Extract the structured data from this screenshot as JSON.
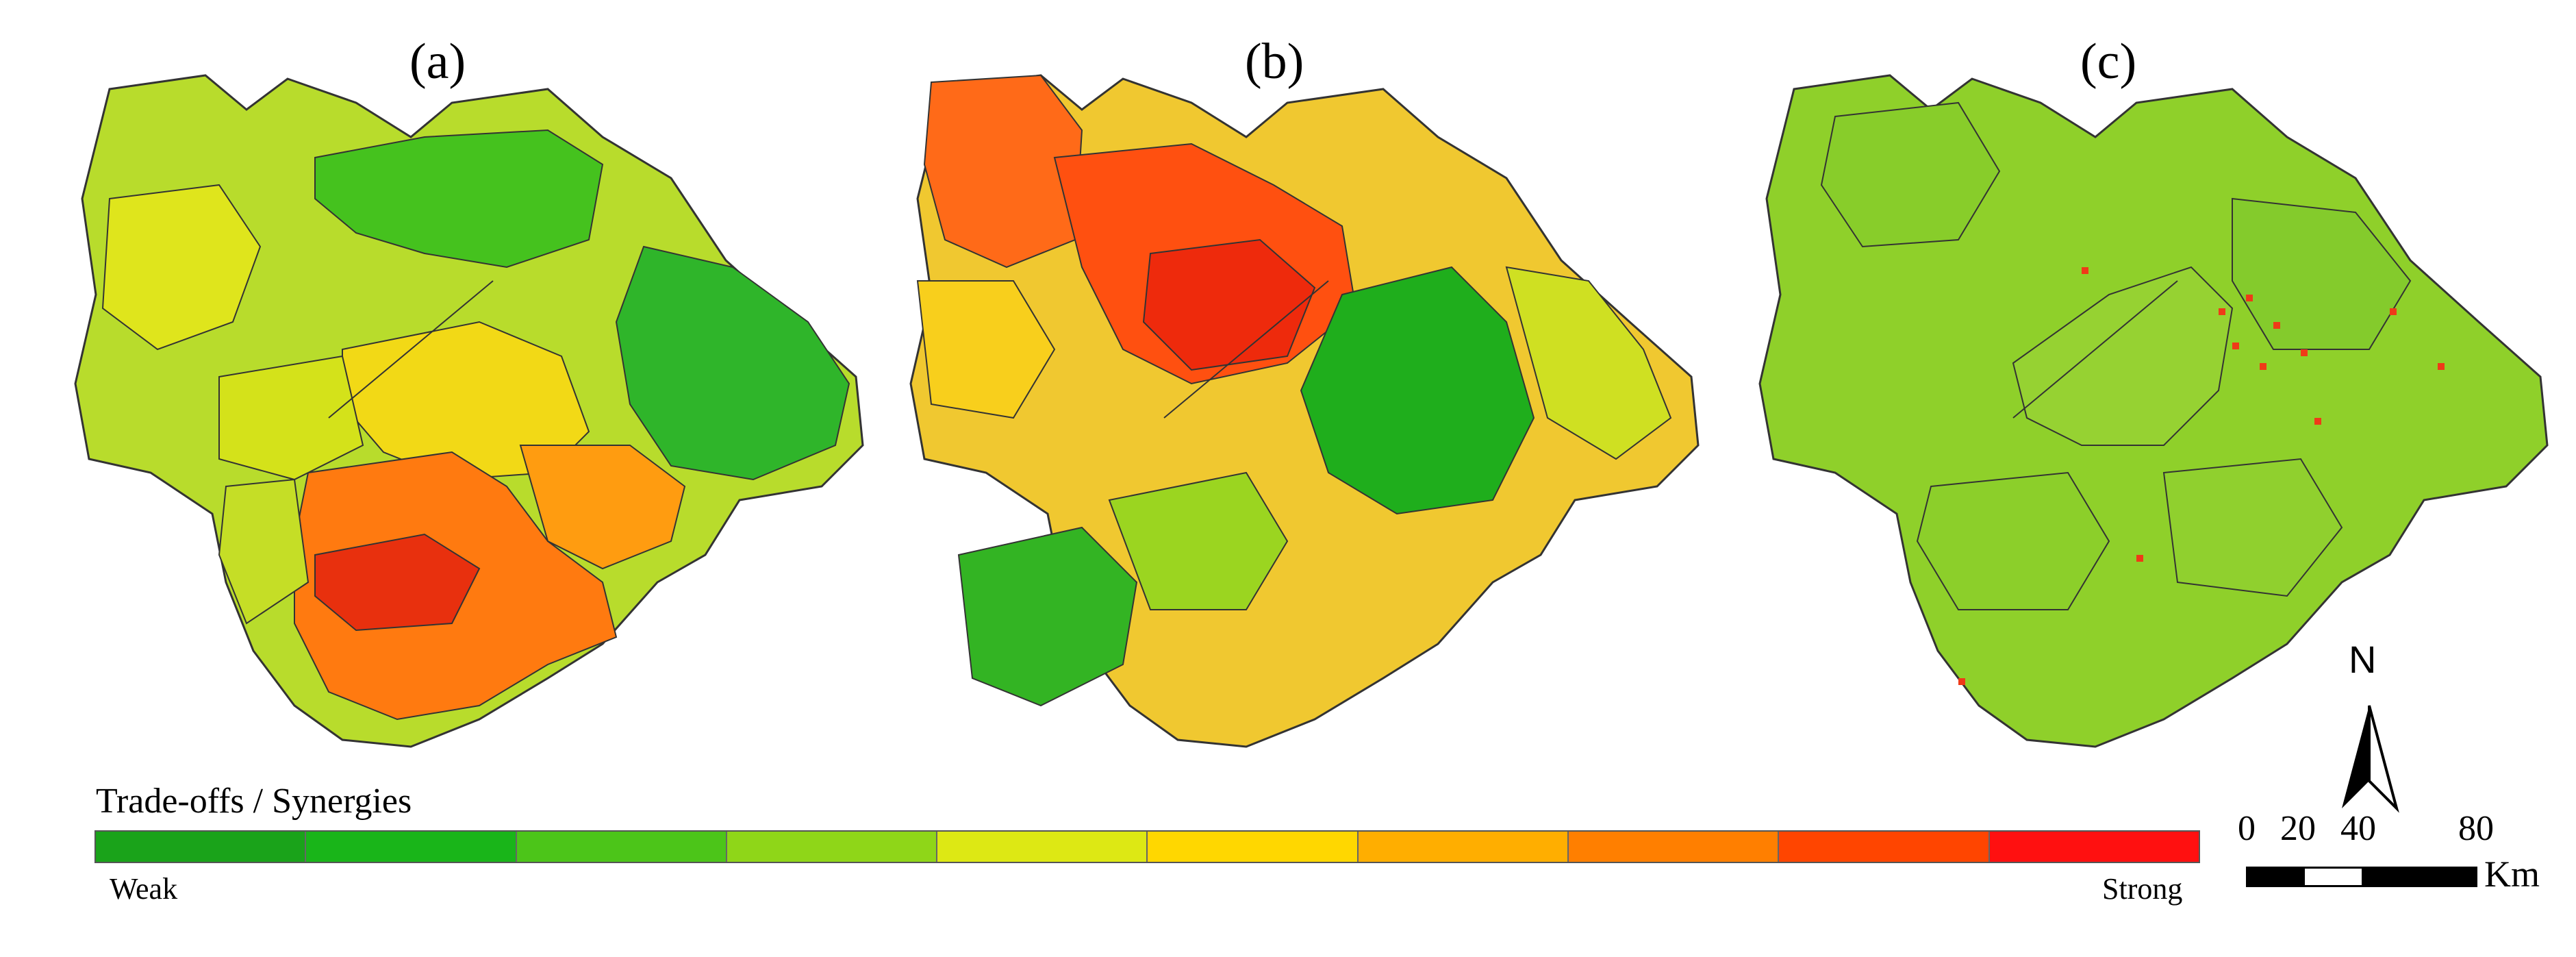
{
  "panels": [
    {
      "label": "(a)"
    },
    {
      "label": "(b)"
    },
    {
      "label": "(c)"
    }
  ],
  "legend": {
    "title": "Trade-offs / Synergies",
    "low_label": "Weak",
    "high_label": "Strong",
    "colors": [
      "#1aa31a",
      "#19b519",
      "#4cc519",
      "#8fd618",
      "#dde814",
      "#ffd700",
      "#ffae00",
      "#ff7f00",
      "#ff4500",
      "#ff1010"
    ]
  },
  "north_arrow": {
    "label": "N"
  },
  "scale_bar": {
    "ticks": [
      "0",
      "20",
      "40",
      "80"
    ],
    "unit": "Km"
  },
  "colors": {
    "boundary": "#333333",
    "panel_a_base": "#b8dc2c",
    "panel_b_base": "#f0c830",
    "panel_c_base": "#8fd02a"
  }
}
